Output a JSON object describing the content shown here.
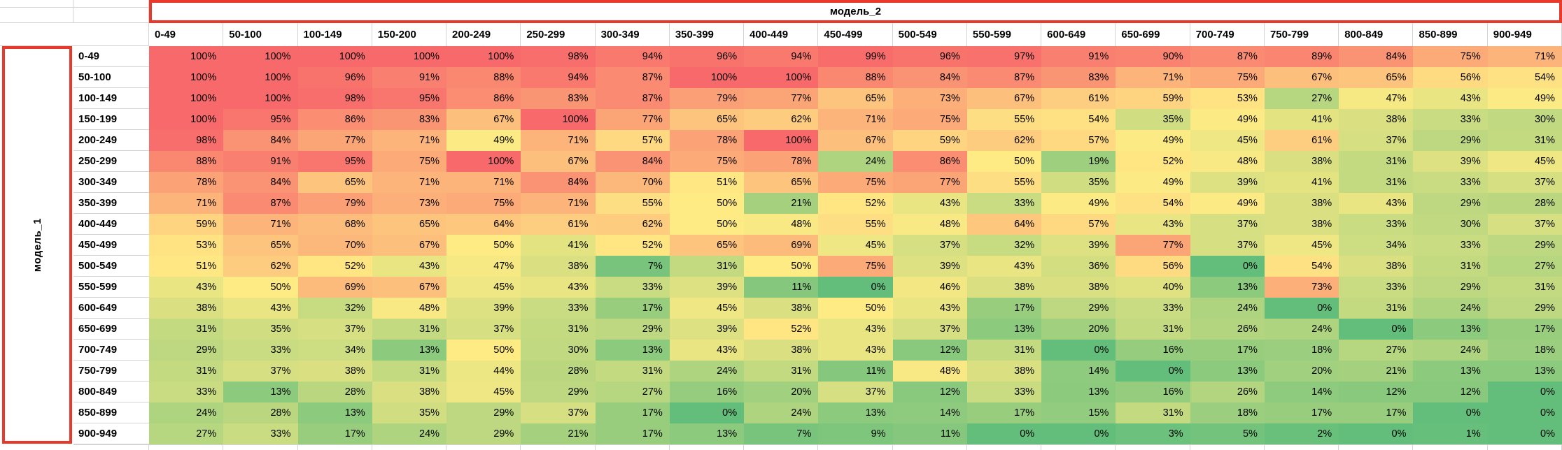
{
  "sheet": {
    "col_axis_title": "модель_2",
    "row_axis_title": "модель_1"
  },
  "colors": {
    "thick_border_red": "#e8392b",
    "gridline_gray": "#d4d4d4",
    "scale_min_green": "#63BE7B",
    "scale_mid_yellow": "#FFEB84",
    "scale_max_red": "#F8696B"
  },
  "chart_data": {
    "type": "heatmap",
    "title": "",
    "x_axis_label": "модель_2",
    "y_axis_label": "модель_1",
    "unit": "%",
    "legend": "none",
    "color_scale": {
      "min_value": 0,
      "min_color": "#63BE7B",
      "mid_value": 50,
      "mid_color": "#FFEB84",
      "max_value": 100,
      "max_color": "#F8696B"
    },
    "columns": [
      "0-49",
      "50-100",
      "100-149",
      "150-200",
      "200-249",
      "250-299",
      "300-349",
      "350-399",
      "400-449",
      "450-499",
      "500-549",
      "550-599",
      "600-649",
      "650-699",
      "700-749",
      "750-799",
      "800-849",
      "850-899",
      "900-949"
    ],
    "rows": [
      "0-49",
      "50-100",
      "100-149",
      "150-199",
      "200-249",
      "250-299",
      "300-349",
      "350-399",
      "400-449",
      "450-499",
      "500-549",
      "550-599",
      "600-649",
      "650-699",
      "700-749",
      "750-799",
      "800-849",
      "850-899",
      "900-949"
    ],
    "values_percent": [
      [
        100,
        100,
        100,
        100,
        100,
        98,
        94,
        96,
        94,
        99,
        96,
        97,
        91,
        90,
        87,
        89,
        84,
        75,
        71
      ],
      [
        100,
        100,
        96,
        91,
        88,
        94,
        87,
        100,
        100,
        88,
        84,
        87,
        83,
        71,
        75,
        67,
        65,
        56,
        54
      ],
      [
        100,
        100,
        98,
        95,
        86,
        83,
        87,
        79,
        77,
        65,
        73,
        67,
        61,
        59,
        53,
        27,
        47,
        43,
        49
      ],
      [
        100,
        95,
        86,
        83,
        67,
        100,
        77,
        65,
        62,
        71,
        75,
        55,
        54,
        35,
        49,
        41,
        38,
        33,
        30
      ],
      [
        98,
        84,
        77,
        71,
        49,
        71,
        57,
        78,
        100,
        67,
        59,
        62,
        57,
        49,
        45,
        61,
        37,
        29,
        31
      ],
      [
        88,
        91,
        95,
        75,
        100,
        67,
        84,
        75,
        78,
        24,
        86,
        50,
        19,
        52,
        48,
        38,
        31,
        39,
        45
      ],
      [
        78,
        84,
        65,
        71,
        71,
        84,
        70,
        51,
        65,
        75,
        77,
        55,
        35,
        49,
        39,
        41,
        31,
        33,
        37
      ],
      [
        71,
        87,
        79,
        73,
        75,
        71,
        55,
        50,
        21,
        52,
        43,
        33,
        49,
        54,
        49,
        38,
        43,
        29,
        28
      ],
      [
        59,
        71,
        68,
        65,
        64,
        61,
        62,
        50,
        48,
        55,
        48,
        64,
        57,
        43,
        37,
        38,
        33,
        30,
        37
      ],
      [
        53,
        65,
        70,
        67,
        50,
        41,
        52,
        65,
        69,
        45,
        37,
        32,
        39,
        77,
        37,
        45,
        34,
        33,
        29
      ],
      [
        51,
        62,
        52,
        43,
        47,
        38,
        7,
        31,
        50,
        75,
        39,
        43,
        36,
        56,
        0,
        54,
        38,
        31,
        27
      ],
      [
        43,
        50,
        69,
        67,
        45,
        43,
        33,
        39,
        11,
        0,
        46,
        38,
        38,
        40,
        13,
        73,
        33,
        29,
        31
      ],
      [
        38,
        43,
        32,
        48,
        39,
        33,
        17,
        45,
        38,
        50,
        43,
        17,
        29,
        33,
        24,
        0,
        31,
        24,
        29
      ],
      [
        31,
        35,
        37,
        31,
        37,
        31,
        29,
        39,
        52,
        43,
        37,
        13,
        20,
        31,
        26,
        24,
        0,
        13,
        17
      ],
      [
        29,
        33,
        34,
        13,
        50,
        30,
        13,
        43,
        38,
        43,
        12,
        31,
        0,
        16,
        17,
        18,
        27,
        24,
        18
      ],
      [
        31,
        37,
        38,
        31,
        44,
        28,
        31,
        24,
        31,
        11,
        48,
        38,
        14,
        0,
        13,
        20,
        21,
        13,
        13
      ],
      [
        33,
        13,
        28,
        38,
        45,
        29,
        27,
        16,
        20,
        37,
        12,
        33,
        13,
        16,
        26,
        14,
        12,
        12,
        0
      ],
      [
        24,
        28,
        13,
        35,
        29,
        37,
        17,
        0,
        24,
        13,
        14,
        17,
        15,
        31,
        18,
        17,
        17,
        0,
        0
      ],
      [
        27,
        33,
        17,
        24,
        29,
        21,
        17,
        13,
        7,
        9,
        11,
        0,
        0,
        3,
        5,
        2,
        0,
        1,
        0
      ]
    ]
  }
}
